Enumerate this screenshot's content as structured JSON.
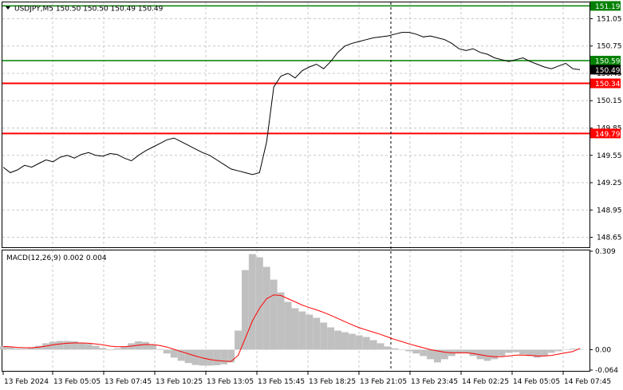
{
  "chart_data": [
    {
      "type": "line",
      "title": "USDJPY,M5  150.50 150.50 150.49 150.49",
      "symbol": "USDJPY",
      "timeframe": "M5",
      "ohlc": {
        "open": 150.5,
        "high": 150.5,
        "low": 150.49,
        "close": 150.49
      },
      "ylim": [
        148.55,
        151.22
      ],
      "y_ticks": [
        "151.05",
        "150.75",
        "150.45",
        "150.15",
        "149.85",
        "149.55",
        "149.25",
        "148.95",
        "148.65"
      ],
      "x_ticks": [
        "13 Feb 2024",
        "13 Feb 05:05",
        "13 Feb 07:45",
        "13 Feb 10:25",
        "13 Feb 13:05",
        "13 Feb 15:45",
        "13 Feb 18:25",
        "13 Feb 21:05",
        "13 Feb 23:45",
        "14 Feb 02:25",
        "14 Feb 05:05",
        "14 Feb 07:45"
      ],
      "levels": [
        {
          "label": "151.19",
          "value": 151.19,
          "color": "#008000"
        },
        {
          "label": "150.59",
          "value": 150.59,
          "color": "#008000"
        },
        {
          "label": "150.34",
          "value": 150.34,
          "color": "#ff0000"
        },
        {
          "label": "149.79",
          "value": 149.79,
          "color": "#ff0000"
        }
      ],
      "current_price": {
        "label": "150.49",
        "value": 150.49,
        "color": "#000000"
      },
      "crosshair_category": "13 Feb 22:45",
      "series": [
        {
          "values": [
            149.42,
            149.36,
            149.39,
            149.44,
            149.42,
            149.46,
            149.5,
            149.48,
            149.53,
            149.55,
            149.52,
            149.56,
            149.58,
            149.55,
            149.54,
            149.57,
            149.56,
            149.52,
            149.49,
            149.55,
            149.6,
            149.64,
            149.68,
            149.72,
            149.74,
            149.7,
            149.66,
            149.62,
            149.58,
            149.55,
            149.5,
            149.45,
            149.4,
            149.38,
            149.36,
            149.34,
            149.36,
            149.7,
            150.3,
            150.42,
            150.45,
            150.4,
            150.48,
            150.52,
            150.55,
            150.5,
            150.58,
            150.68,
            150.75,
            150.78,
            150.8,
            150.82,
            150.84,
            150.85,
            150.86,
            150.88,
            150.9,
            150.9,
            150.88,
            150.85,
            150.86,
            150.84,
            150.82,
            150.78,
            150.72,
            150.7,
            150.72,
            150.68,
            150.66,
            150.62,
            150.6,
            150.58,
            150.6,
            150.62,
            150.58,
            150.55,
            150.52,
            150.5,
            150.53,
            150.56,
            150.5,
            150.49
          ]
        }
      ]
    },
    {
      "type": "bar",
      "title": "MACD(12,26,9) 0.002 0.004",
      "ylim": [
        -0.064,
        0.309
      ],
      "y_ticks": [
        "0.309",
        "0.00",
        "-0.064"
      ],
      "series": [
        {
          "name": "MACD",
          "values": [
            0.01,
            0.008,
            0.004,
            0.003,
            0.006,
            0.012,
            0.02,
            0.025,
            0.027,
            0.027,
            0.026,
            0.022,
            0.018,
            0.012,
            0.005,
            -0.002,
            0.004,
            0.01,
            0.02,
            0.026,
            0.024,
            0.016,
            0.002,
            -0.012,
            -0.025,
            -0.035,
            -0.042,
            -0.048,
            -0.05,
            -0.05,
            -0.049,
            -0.046,
            -0.04,
            0.06,
            0.25,
            0.3,
            0.29,
            0.26,
            0.22,
            0.18,
            0.15,
            0.13,
            0.12,
            0.11,
            0.1,
            0.085,
            0.07,
            0.06,
            0.055,
            0.05,
            0.045,
            0.04,
            0.03,
            0.02,
            0.01,
            0.004,
            0.0,
            -0.005,
            -0.012,
            -0.02,
            -0.03,
            -0.04,
            -0.03,
            -0.02,
            -0.012,
            -0.01,
            -0.02,
            -0.03,
            -0.035,
            -0.03,
            -0.02,
            -0.01,
            -0.008,
            -0.015,
            -0.02,
            -0.025,
            -0.02,
            -0.01,
            -0.005,
            0.0,
            0.003,
            0.002
          ]
        },
        {
          "name": "Signal",
          "values": [
            0.01,
            0.009,
            0.007,
            0.006,
            0.006,
            0.008,
            0.011,
            0.015,
            0.018,
            0.02,
            0.021,
            0.021,
            0.02,
            0.018,
            0.015,
            0.011,
            0.009,
            0.009,
            0.011,
            0.014,
            0.016,
            0.016,
            0.013,
            0.008,
            0.001,
            -0.006,
            -0.013,
            -0.02,
            -0.026,
            -0.031,
            -0.034,
            -0.036,
            -0.037,
            -0.018,
            0.036,
            0.09,
            0.13,
            0.16,
            0.172,
            0.17,
            0.16,
            0.15,
            0.14,
            0.132,
            0.125,
            0.117,
            0.108,
            0.098,
            0.088,
            0.078,
            0.069,
            0.062,
            0.055,
            0.048,
            0.04,
            0.032,
            0.025,
            0.018,
            0.012,
            0.006,
            0.0,
            -0.004,
            -0.008,
            -0.01,
            -0.01,
            -0.01,
            -0.012,
            -0.016,
            -0.02,
            -0.022,
            -0.022,
            -0.02,
            -0.017,
            -0.017,
            -0.018,
            -0.02,
            -0.02,
            -0.018,
            -0.014,
            -0.01,
            -0.006,
            0.004
          ]
        }
      ]
    }
  ]
}
